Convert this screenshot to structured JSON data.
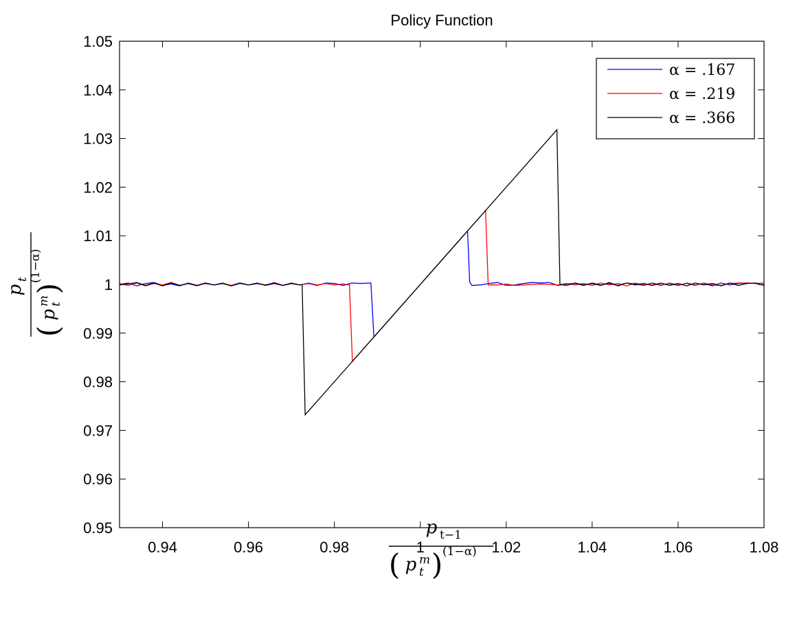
{
  "chart_data": {
    "type": "line",
    "title": "Policy Function",
    "xlim": [
      0.93,
      1.08
    ],
    "ylim": [
      0.95,
      1.05
    ],
    "xticks": [
      0.94,
      0.96,
      0.98,
      1.0,
      1.02,
      1.04,
      1.06,
      1.08
    ],
    "xtick_labels": [
      "0.94",
      "0.96",
      "0.98",
      "1",
      "1.02",
      "1.04",
      "1.06",
      "1.08"
    ],
    "yticks": [
      0.95,
      0.96,
      0.97,
      0.98,
      0.99,
      1.0,
      1.01,
      1.02,
      1.03,
      1.04,
      1.05
    ],
    "ytick_labels": [
      "0.95",
      "0.96",
      "0.97",
      "0.98",
      "0.99",
      "1",
      "1.01",
      "1.02",
      "1.03",
      "1.04",
      "1.05"
    ],
    "xlabel": {
      "numerator": "p",
      "numerator_sub": "t−1",
      "denominator_base": "p",
      "denominator_sub": "t",
      "denominator_sup": "m",
      "exponent": "(1−α)"
    },
    "ylabel": {
      "numerator": "p",
      "numerator_sub": "t",
      "denominator_base": "p",
      "denominator_sub": "t",
      "denominator_sup": "m",
      "exponent": "(1−α)"
    },
    "legend_position": "top-right",
    "grid": false,
    "series": [
      {
        "name": "α = .167",
        "color": "#0000ff",
        "x": [
          0.93,
          0.932,
          0.934,
          0.936,
          0.938,
          0.94,
          0.942,
          0.944,
          0.946,
          0.948,
          0.95,
          0.952,
          0.954,
          0.956,
          0.958,
          0.96,
          0.962,
          0.964,
          0.966,
          0.968,
          0.97,
          0.972,
          0.974,
          0.976,
          0.978,
          0.98,
          0.982,
          0.984,
          0.986,
          0.9885,
          0.9892,
          1.0,
          1.011,
          1.0115,
          1.012,
          1.014,
          1.016,
          1.018,
          1.02,
          1.022,
          1.024,
          1.026,
          1.028,
          1.03,
          1.032,
          1.034,
          1.036,
          1.038,
          1.04,
          1.042,
          1.044,
          1.046,
          1.048,
          1.05,
          1.052,
          1.054,
          1.056,
          1.058,
          1.06,
          1.062,
          1.064,
          1.066,
          1.068,
          1.07,
          1.072,
          1.074,
          1.076,
          1.078,
          1.08
        ],
        "y": [
          1.0,
          1.0003,
          0.9997,
          1.0002,
          1.0004,
          0.9998,
          1.0001,
          0.9997,
          1.0003,
          0.9998,
          1.0002,
          0.9999,
          1.0003,
          0.9997,
          1.0002,
          0.9999,
          1.0003,
          0.9998,
          1.0002,
          0.9998,
          1.0003,
          0.9999,
          1.0002,
          0.9998,
          1.0003,
          1.0002,
          0.9998,
          1.0003,
          1.0002,
          1.0003,
          0.9892,
          1.0,
          1.011,
          1.0005,
          0.9998,
          0.9999,
          1.0002,
          1.0004,
          0.9998,
          0.9999,
          1.0002,
          1.0004,
          1.0003,
          1.0004,
          0.9998,
          1.0001,
          1.0002,
          0.9998,
          1.0003,
          0.9999,
          1.0002,
          0.9998,
          1.0003,
          1.0001,
          0.9998,
          1.0003,
          0.9999,
          1.0002,
          0.9998,
          1.0003,
          0.9999,
          1.0002,
          0.9997,
          1.0003,
          0.9999,
          1.0002,
          1.0003,
          1.0002,
          0.9999
        ]
      },
      {
        "name": "α = .219",
        "color": "#ff0000",
        "x": [
          0.93,
          0.932,
          0.934,
          0.936,
          0.938,
          0.94,
          0.942,
          0.944,
          0.946,
          0.948,
          0.95,
          0.952,
          0.954,
          0.956,
          0.958,
          0.96,
          0.962,
          0.964,
          0.966,
          0.968,
          0.97,
          0.972,
          0.974,
          0.976,
          0.978,
          0.98,
          0.982,
          0.9835,
          0.9842,
          1.0,
          1.0152,
          1.0158,
          1.018,
          1.02,
          1.022,
          1.024,
          1.026,
          1.028,
          1.03,
          1.032,
          1.034,
          1.036,
          1.038,
          1.04,
          1.042,
          1.044,
          1.046,
          1.048,
          1.05,
          1.052,
          1.054,
          1.056,
          1.058,
          1.06,
          1.062,
          1.064,
          1.066,
          1.068,
          1.07,
          1.072,
          1.074,
          1.076,
          1.078,
          1.08
        ],
        "y": [
          1.0002,
          0.9998,
          1.0003,
          0.9997,
          1.0002,
          0.9999,
          1.0004,
          0.9998,
          1.0002,
          0.9997,
          1.0003,
          0.9999,
          1.0002,
          0.9998,
          1.0003,
          0.9999,
          1.0002,
          0.9998,
          1.0004,
          0.9998,
          1.0002,
          0.9999,
          1.0003,
          0.9999,
          1.0002,
          0.9999,
          1.0001,
          0.9999,
          0.9842,
          1.0,
          1.0152,
          0.9999,
          0.9999,
          1.0001,
          0.9998,
          0.9999,
          1.0,
          1.0001,
          1.0,
          0.9999,
          1.0002,
          0.9999,
          1.0002,
          0.9998,
          1.0003,
          0.9999,
          1.0002,
          0.9997,
          1.0003,
          0.9999,
          1.0002,
          0.9998,
          1.0003,
          0.9999,
          1.0002,
          0.9998,
          1.0003,
          0.9999,
          0.9998,
          1.0002,
          1.0003,
          1.0003,
          1.0002,
          1.0003
        ]
      },
      {
        "name": "α = .366",
        "color": "#000000",
        "x": [
          0.93,
          0.932,
          0.934,
          0.936,
          0.938,
          0.94,
          0.942,
          0.944,
          0.946,
          0.948,
          0.95,
          0.952,
          0.954,
          0.956,
          0.958,
          0.96,
          0.962,
          0.964,
          0.966,
          0.968,
          0.97,
          0.972,
          0.9725,
          0.9732,
          1.0,
          1.0318,
          1.0325,
          1.034,
          1.036,
          1.038,
          1.04,
          1.042,
          1.044,
          1.046,
          1.048,
          1.05,
          1.052,
          1.054,
          1.056,
          1.058,
          1.06,
          1.062,
          1.064,
          1.066,
          1.068,
          1.07,
          1.072,
          1.074,
          1.076,
          1.078,
          1.08
        ],
        "y": [
          0.9999,
          1.0001,
          1.0004,
          0.9998,
          1.0003,
          0.9997,
          1.0003,
          0.9998,
          1.0002,
          0.9998,
          1.0003,
          0.9999,
          1.0002,
          0.9997,
          1.0003,
          0.9999,
          1.0002,
          0.9999,
          1.0003,
          0.9998,
          1.0002,
          0.9999,
          1.0,
          0.9732,
          1.0,
          1.0318,
          1.0,
          0.9998,
          1.0003,
          0.9999,
          1.0002,
          0.9998,
          1.0004,
          0.9997,
          1.0003,
          0.9999,
          1.0002,
          0.9998,
          1.0003,
          0.9998,
          1.0002,
          0.9997,
          1.0003,
          0.9999,
          1.0002,
          0.9997,
          1.0003,
          0.9998,
          1.0002,
          1.0003,
          0.9998
        ]
      }
    ]
  }
}
